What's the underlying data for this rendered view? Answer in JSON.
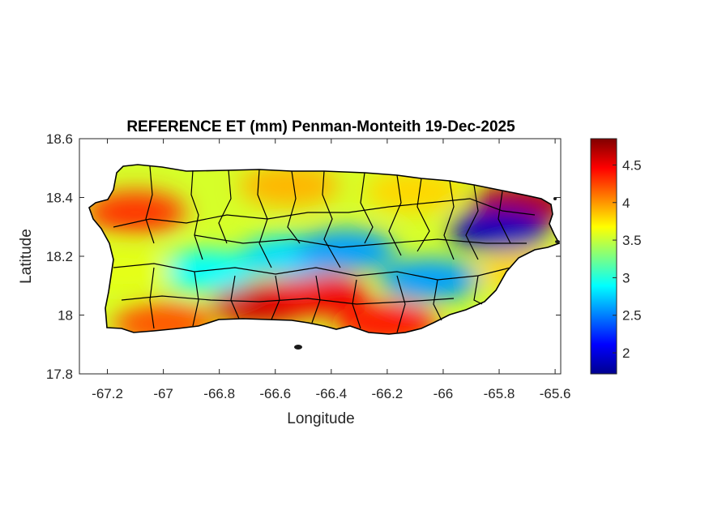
{
  "chart_data": {
    "type": "heatmap",
    "title": "REFERENCE ET (mm) Penman-Monteith 19-Dec-2025",
    "xlabel": "Longitude",
    "ylabel": "Latitude",
    "xlim": [
      -67.3,
      -65.58
    ],
    "ylim": [
      17.8,
      18.6
    ],
    "xticks": [
      -67.2,
      -67,
      -66.8,
      -66.6,
      -66.4,
      -66.2,
      -66,
      -65.8,
      -65.6
    ],
    "yticks": [
      17.8,
      18,
      18.2,
      18.4,
      18.6
    ],
    "colorbar": {
      "colormap": "jet",
      "range": [
        1.72,
        4.85
      ],
      "ticks": [
        2,
        2.5,
        3,
        3.5,
        4,
        4.5
      ]
    },
    "grid": false,
    "regions": [
      {
        "lon": -66.65,
        "lat": 18.04,
        "value": 4.6
      },
      {
        "lon": -66.45,
        "lat": 18.07,
        "value": 4.5
      },
      {
        "lon": -66.2,
        "lat": 17.97,
        "value": 4.4
      },
      {
        "lon": -65.72,
        "lat": 18.38,
        "value": 4.7
      },
      {
        "lon": -67.0,
        "lat": 17.97,
        "value": 4.2
      },
      {
        "lon": -67.1,
        "lat": 18.35,
        "value": 4.3
      },
      {
        "lon": -66.85,
        "lat": 18.15,
        "value": 2.9
      },
      {
        "lon": -66.55,
        "lat": 18.2,
        "value": 2.8
      },
      {
        "lon": -66.35,
        "lat": 18.22,
        "value": 2.6
      },
      {
        "lon": -66.05,
        "lat": 18.12,
        "value": 2.6
      },
      {
        "lon": -65.8,
        "lat": 18.29,
        "value": 1.9
      },
      {
        "lon": -66.55,
        "lat": 18.44,
        "value": 3.9
      },
      {
        "lon": -66.1,
        "lat": 18.42,
        "value": 3.8
      },
      {
        "lon": -67.15,
        "lat": 18.15,
        "value": 3.6
      },
      {
        "lon": -65.7,
        "lat": 18.15,
        "value": 3.8
      }
    ]
  }
}
